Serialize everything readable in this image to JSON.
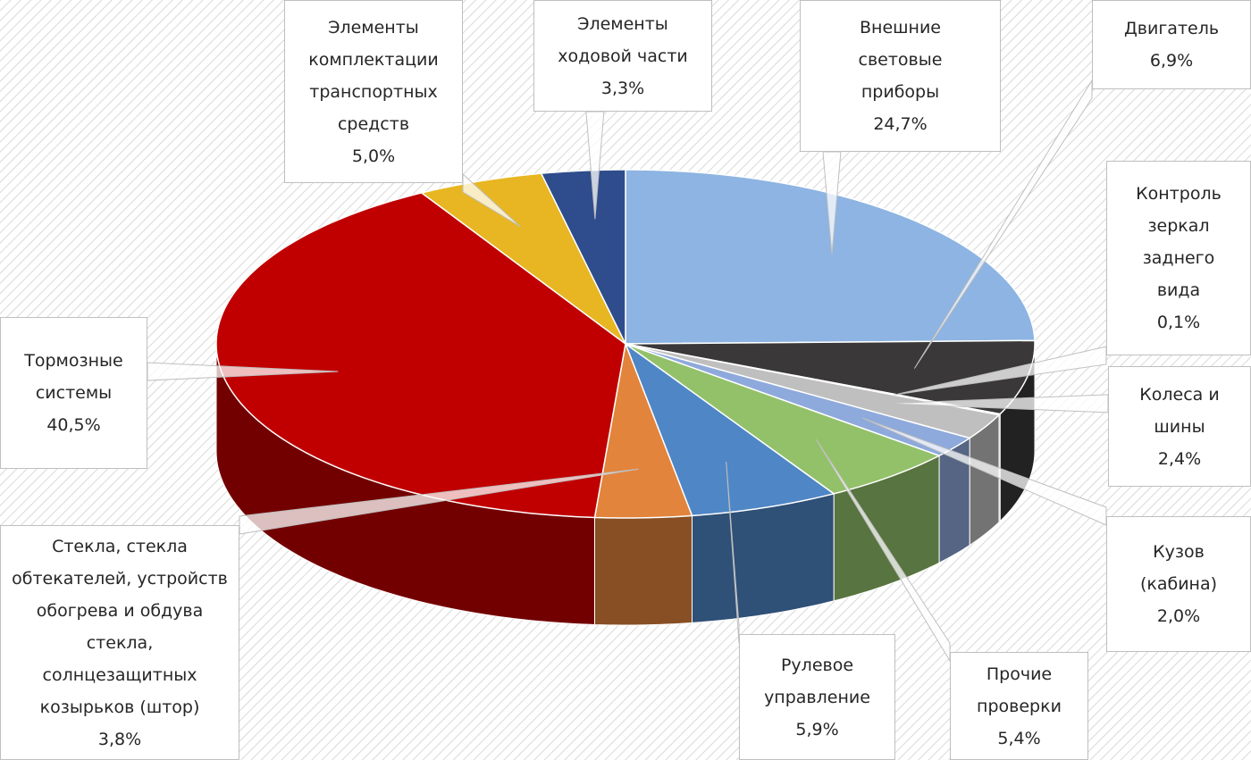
{
  "chart_data": {
    "type": "pie3d",
    "categories": [
      "Внешние световые приборы",
      "Двигатель",
      "Контроль зеркал заднего вида",
      "Колеса и шины",
      "Кузов (кабина)",
      "Прочие проверки",
      "Рулевое управление",
      "Стекла, стекла обтекателей, устройств обогрева и обдува стекла, солнцезащитных козырьков (штор)",
      "Тормозные системы",
      "Элементы комплектации транспортных средств",
      "Элементы ходовой части"
    ],
    "values": [
      24.7,
      6.9,
      0.1,
      2.4,
      2.0,
      5.4,
      5.9,
      3.8,
      40.5,
      5.0,
      3.3
    ],
    "value_labels": [
      "24,7%",
      "6,9%",
      "0,1%",
      "2,4%",
      "2,0%",
      "5,4%",
      "5,9%",
      "3,8%",
      "40,5%",
      "5,0%",
      "3,3%"
    ],
    "colors": [
      "#8db4e2",
      "#3a3838",
      "#d9d9d9",
      "#bfbfbf",
      "#8ea9db",
      "#93c16a",
      "#4f86c6",
      "#e2843c",
      "#c00000",
      "#e7b622",
      "#2f4d8c"
    ]
  }
}
